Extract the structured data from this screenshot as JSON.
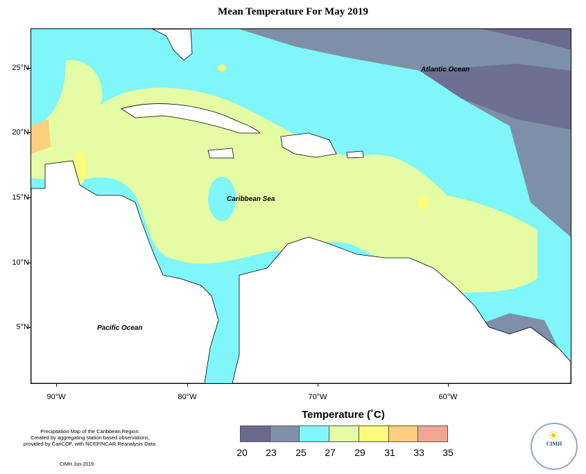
{
  "title": "Mean Temperature For May 2019",
  "labels": {
    "atlantic": "Atlantic Ocean",
    "caribbean": "Caribbean Sea",
    "pacific": "Pacific Ocean"
  },
  "axes": {
    "latitudes": [
      "25°N",
      "20°N",
      "15°N",
      "10°N",
      "5°N"
    ],
    "longitudes": [
      "90°W",
      "80°W",
      "70°W",
      "60°W"
    ]
  },
  "legend": {
    "title": "Temperature (˚C)",
    "ticks": [
      "20",
      "23",
      "25",
      "27",
      "29",
      "31",
      "33",
      "35"
    ],
    "colors": [
      "#6a6a8f",
      "#7e90a8",
      "#7ff6f9",
      "#e4fca4",
      "#fdfb7a",
      "#fbcf7c",
      "#f2a592"
    ]
  },
  "credits": {
    "line1": "Precipitation Map of the Caribbean Region.",
    "line2": "Created by aggregating station based observations,",
    "line3": "provided by CariCOF, with NCEP/NCAR Reanalysis Data.",
    "date": "CIMH Jun-2019"
  },
  "logo": {
    "text": "CIMH"
  }
}
